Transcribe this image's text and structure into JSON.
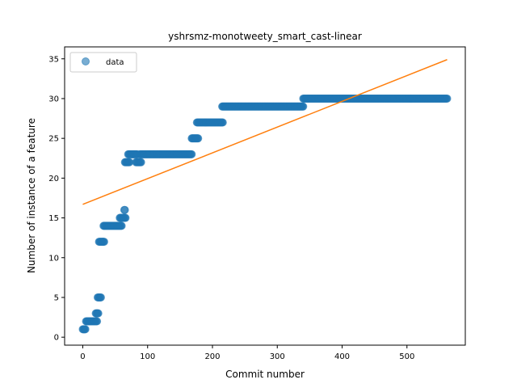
{
  "chart_data": {
    "type": "scatter",
    "title": "yshrsmz-monotweety_smart_cast-linear",
    "xlabel": "Commit number",
    "ylabel": "Number of instance of a feature",
    "xlim": [
      -28,
      590
    ],
    "ylim": [
      -1,
      36.5
    ],
    "xticks": [
      0,
      100,
      200,
      300,
      400,
      500
    ],
    "yticks": [
      0,
      5,
      10,
      15,
      20,
      25,
      30,
      35
    ],
    "grid": false,
    "legend": {
      "placement": "top-left",
      "entries": [
        "data"
      ]
    },
    "colors": {
      "data": "#1f77b4",
      "fit": "#ff7f0e"
    },
    "series": [
      {
        "name": "data",
        "kind": "scatter",
        "segments": [
          {
            "x_start": 0,
            "x_end": 4,
            "y": 1
          },
          {
            "x_start": 5,
            "x_end": 22,
            "y": 2
          },
          {
            "x_start": 20,
            "x_end": 24,
            "y": 3
          },
          {
            "x_start": 23,
            "x_end": 28,
            "y": 5
          },
          {
            "x_start": 25,
            "x_end": 33,
            "y": 12
          },
          {
            "x_start": 32,
            "x_end": 60,
            "y": 14
          },
          {
            "x_start": 57,
            "x_end": 66,
            "y": 15
          },
          {
            "x_start": 64,
            "x_end": 65,
            "y": 16
          },
          {
            "x_start": 65,
            "x_end": 72,
            "y": 22
          },
          {
            "x_start": 70,
            "x_end": 84,
            "y": 23
          },
          {
            "x_start": 82,
            "x_end": 90,
            "y": 22
          },
          {
            "x_start": 88,
            "x_end": 168,
            "y": 23
          },
          {
            "x_start": 168,
            "x_end": 178,
            "y": 25
          },
          {
            "x_start": 176,
            "x_end": 216,
            "y": 27
          },
          {
            "x_start": 215,
            "x_end": 340,
            "y": 29
          },
          {
            "x_start": 340,
            "x_end": 562,
            "y": 30
          }
        ]
      },
      {
        "name": "",
        "kind": "line",
        "x": [
          0,
          562
        ],
        "y": [
          16.7,
          34.9
        ]
      }
    ]
  }
}
